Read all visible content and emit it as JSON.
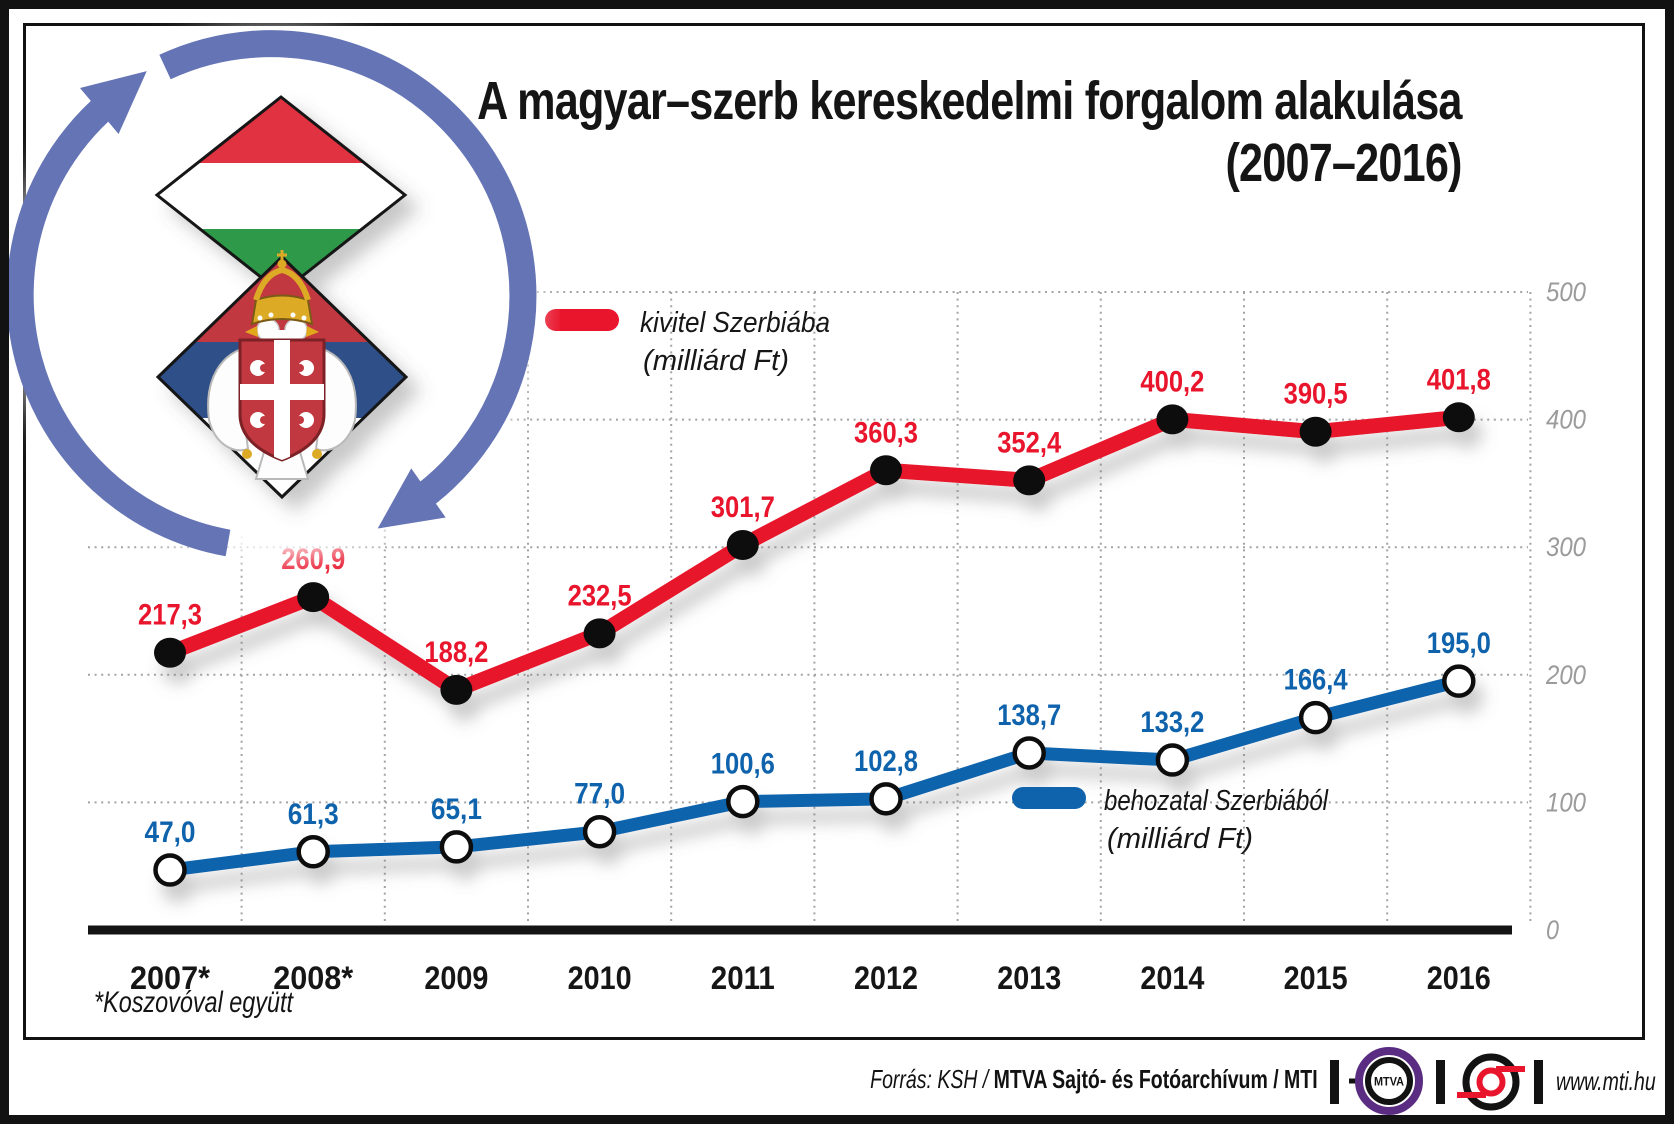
{
  "title": {
    "line1": "A magyar–szerb kereskedelmi forgalom alakulása",
    "line2": "(2007–2016)"
  },
  "chart_data": {
    "type": "line",
    "categories": [
      "2007*",
      "2008*",
      "2009",
      "2010",
      "2011",
      "2012",
      "2013",
      "2014",
      "2015",
      "2016"
    ],
    "series": [
      {
        "name": "kivitel Szerbiába",
        "unit": "(milliárd Ft)",
        "color": "#e8152c",
        "marker": "black-dot",
        "values": [
          217.3,
          260.9,
          188.2,
          232.5,
          301.7,
          360.3,
          352.4,
          400.2,
          390.5,
          401.8
        ],
        "labels": [
          "217,3",
          "260,9",
          "188,2",
          "232,5",
          "301,7",
          "360,3",
          "352,4",
          "400,2",
          "390,5",
          "401,8"
        ]
      },
      {
        "name": "behozatal Szerbiából",
        "unit": "(milliárd Ft)",
        "color": "#0f63ac",
        "marker": "white-dot",
        "values": [
          47.0,
          61.3,
          65.1,
          77.0,
          100.6,
          102.8,
          138.7,
          133.2,
          166.4,
          195.0
        ],
        "labels": [
          "47,0",
          "61,3",
          "65,1",
          "77,0",
          "100,6",
          "102,8",
          "138,7",
          "133,2",
          "166,4",
          "195,0"
        ]
      }
    ],
    "ylim": [
      0,
      500
    ],
    "yticks": [
      500,
      400,
      300,
      200,
      100,
      0
    ],
    "ytick_labels": [
      "500",
      "400",
      "300",
      "200",
      "100",
      "0"
    ],
    "ytick_side": "right",
    "grid": "dotted",
    "vertical_gridlines": "year-midpoints",
    "legend_position": "inside-plot"
  },
  "art": {
    "icons": [
      "cycle-arrows-icon",
      "hungary-flag-diamond",
      "serbia-flag-diamond",
      "serbia-coat-of-arms"
    ],
    "arrow_color": "#6474b5"
  },
  "footnote": "*Koszovóval együtt",
  "footer": {
    "source_regular": "Forrás: KSH / ",
    "source_bold": "MTVA Sajtó- és Fotóarchívum / MTI",
    "mtva_logo_text": "MTVA",
    "website": "www.mti.hu"
  }
}
